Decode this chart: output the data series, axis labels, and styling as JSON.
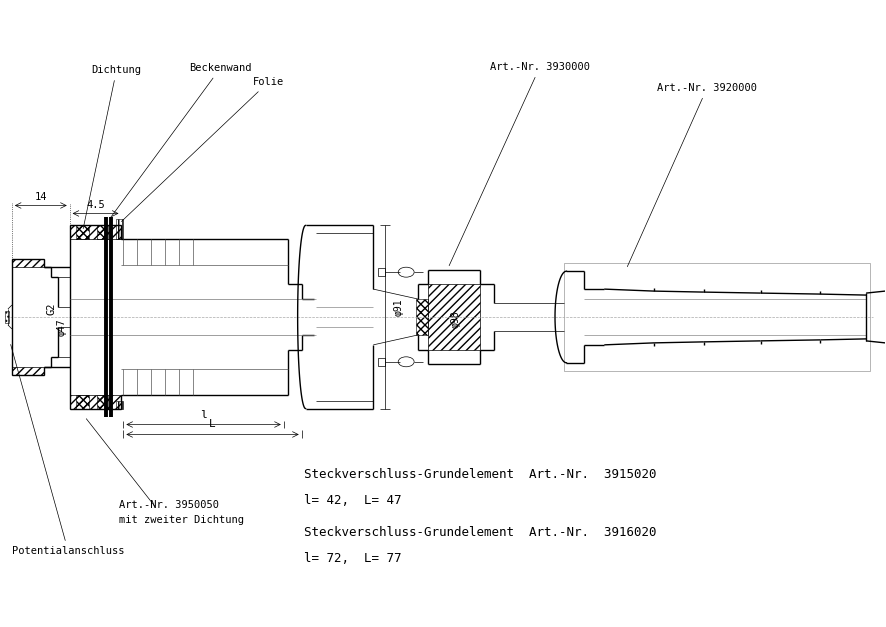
{
  "bg_color": "#ffffff",
  "line_color": "#000000",
  "thin_line": 0.5,
  "medium_line": 1.0,
  "thick_line": 1.5,
  "text_labels": {
    "dichtung": "Dichtung",
    "beckenwand": "Beckenwand",
    "folie": "Folie",
    "art_nr_3950050": "Art.-Nr. 3950050",
    "mit_zweiter": "mit zweiter Dichtung",
    "potentialanschluss": "Potentialanschluss",
    "art_nr_3930000": "Art.-Nr. 3930000",
    "art_nr_3920000": "Art.-Nr. 3920000",
    "dim_14": "14",
    "dim_4_5": "4.5",
    "dim_G2": "G2",
    "dim_phi47": "φ47",
    "dim_phi91": "φ91",
    "dim_phi98": "φ98",
    "dim_l": "l",
    "dim_L": "L",
    "text1": "Steckverschluss-Grundelement  Art.-Nr.  3915020",
    "text2": "l= 42,  L= 47",
    "text3": "Steckverschluss-Grundelement  Art.-Nr.  3916020",
    "text4": "l= 72,  L= 77"
  }
}
